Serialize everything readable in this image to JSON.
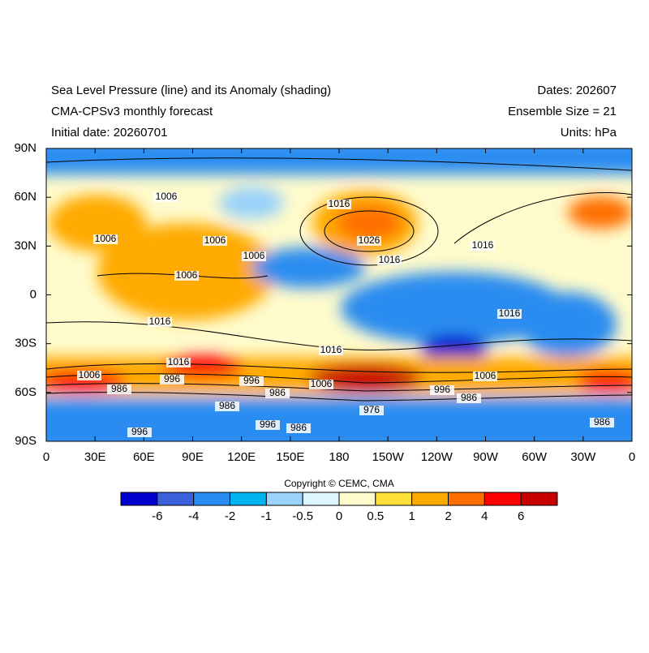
{
  "header": {
    "title_left": [
      "Sea Level Pressure (line) and its Anomaly (shading)",
      "CMA-CPSv3 monthly forecast",
      "Initial date: 20260701"
    ],
    "title_right": [
      "Dates: 202607",
      "Ensemble Size = 21",
      "Units: hPa"
    ]
  },
  "map": {
    "lat_ticks": [
      "90N",
      "60N",
      "30N",
      "0",
      "30S",
      "60S",
      "90S"
    ],
    "lon_ticks": [
      "0",
      "30E",
      "60E",
      "90E",
      "120E",
      "150E",
      "180",
      "150W",
      "120W",
      "90W",
      "60W",
      "30W",
      "0"
    ],
    "contour_labels": [
      1006,
      1016,
      1006,
      1006,
      1026,
      1006,
      1016,
      1016,
      1006,
      1016,
      1016,
      1016,
      1016,
      1006,
      996,
      996,
      1006,
      1006,
      986,
      986,
      996,
      986,
      986,
      976,
      996,
      986,
      986,
      996
    ]
  },
  "footer": {
    "copyright": "Copyright © CEMC, CMA"
  },
  "colorbar": {
    "levels": [
      -6,
      -4,
      -2,
      -1,
      -0.5,
      0,
      0.5,
      1,
      2,
      4,
      6
    ],
    "colors": [
      "#0000cd",
      "#3a62dc",
      "#2a8cf0",
      "#00b4f0",
      "#9ad2fa",
      "#dcf5ff",
      "#fffbcc",
      "#ffdf3a",
      "#ffaa00",
      "#ff6e00",
      "#ff0000",
      "#c80000"
    ]
  }
}
